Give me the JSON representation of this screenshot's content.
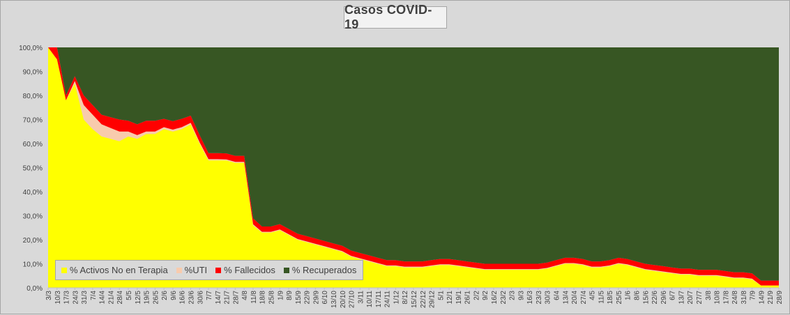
{
  "chart_data": {
    "type": "area",
    "title": "Casos  COVID-19",
    "stacked": true,
    "percent": true,
    "ylim": [
      0,
      100
    ],
    "y_ticks": [
      "0,0%",
      "10,0%",
      "20,0%",
      "30,0%",
      "40,0%",
      "50,0%",
      "60,0%",
      "70,0%",
      "80,0%",
      "90,0%",
      "100,0%"
    ],
    "x_ticks": [
      "3/3",
      "10/3",
      "17/3",
      "24/3",
      "31/3",
      "7/4",
      "14/4",
      "21/4",
      "28/4",
      "5/5",
      "12/5",
      "19/5",
      "26/5",
      "2/6",
      "9/6",
      "16/6",
      "23/6",
      "30/6",
      "7/7",
      "14/7",
      "21/7",
      "28/7",
      "4/8",
      "11/8",
      "18/8",
      "25/8",
      "1/9",
      "8/9",
      "15/9",
      "22/9",
      "29/9",
      "6/10",
      "13/10",
      "20/10",
      "27/10",
      "3/11",
      "10/11",
      "17/11",
      "24/11",
      "1/12",
      "8/12",
      "15/12",
      "22/12",
      "29/12",
      "5/1",
      "12/1",
      "19/1",
      "26/1",
      "2/2",
      "9/2",
      "16/2",
      "23/2",
      "2/3",
      "9/3",
      "16/3",
      "23/3",
      "30/3",
      "6/4",
      "13/4",
      "20/4",
      "27/4",
      "4/5",
      "11/5",
      "18/5",
      "25/5",
      "1/6",
      "8/6",
      "15/6",
      "22/6",
      "29/6",
      "6/7",
      "13/7",
      "20/7",
      "27/7",
      "3/8",
      "10/8",
      "17/8",
      "24/8",
      "31/8",
      "7/9",
      "14/9",
      "21/9",
      "28/9"
    ],
    "legend_position": "bottom-left",
    "series": [
      {
        "name": "% Activos No en Terapia",
        "color": "#ffff00",
        "values": [
          100,
          95,
          78,
          85,
          70,
          66,
          63,
          62,
          61,
          63,
          62,
          64,
          64,
          66,
          65,
          66,
          68,
          60,
          53,
          53,
          53,
          52,
          52,
          26,
          23,
          23,
          24,
          22,
          20,
          19,
          18,
          17,
          16,
          15,
          13,
          12,
          11,
          10,
          9,
          9,
          8.5,
          8.5,
          8.5,
          9,
          9.5,
          9.5,
          9,
          8.5,
          8,
          7.5,
          7.5,
          7.5,
          7.5,
          7.5,
          7.5,
          7.5,
          8,
          9,
          10,
          10,
          9.5,
          8.5,
          8.5,
          9,
          10,
          9.5,
          8.5,
          7.5,
          7,
          6.5,
          6,
          5.5,
          5.5,
          5,
          5,
          5,
          4.5,
          4,
          4,
          3.5,
          1,
          1,
          1
        ]
      },
      {
        "name": "%UTI",
        "color": "#f8cbad",
        "values": [
          0,
          0,
          0,
          1,
          6,
          6,
          5,
          4.5,
          4,
          2,
          1.5,
          1,
          1,
          0.8,
          0.8,
          0.8,
          0.6,
          0.5,
          0.5,
          0.5,
          0.4,
          0.4,
          0.4,
          0.4,
          0.3,
          0.3,
          0.3,
          0.3,
          0.3,
          0.3,
          0.3,
          0.3,
          0.3,
          0.3,
          0.3,
          0.3,
          0.3,
          0.3,
          0.3,
          0.3,
          0.3,
          0.3,
          0.3,
          0.3,
          0.3,
          0.3,
          0.3,
          0.3,
          0.3,
          0.3,
          0.3,
          0.3,
          0.3,
          0.3,
          0.3,
          0.3,
          0.3,
          0.3,
          0.3,
          0.3,
          0.3,
          0.3,
          0.3,
          0.3,
          0.3,
          0.3,
          0.3,
          0.3,
          0.3,
          0.3,
          0.3,
          0.3,
          0.3,
          0.3,
          0.3,
          0.3,
          0.3,
          0.3,
          0.3,
          0.3,
          0,
          0,
          0
        ]
      },
      {
        "name": "% Fallecidos",
        "color": "#ff0000",
        "values": [
          0,
          5,
          2,
          2,
          4,
          4,
          4,
          4.5,
          5,
          4.5,
          4.5,
          4.5,
          4.5,
          3.5,
          3.5,
          3.5,
          3,
          3,
          2.5,
          2.5,
          2.5,
          2.5,
          2.5,
          2.5,
          2.2,
          2.2,
          2.2,
          2.2,
          2.2,
          2.2,
          2.2,
          2.2,
          2.2,
          2.2,
          2.2,
          2.2,
          2.2,
          2.2,
          2.2,
          2.2,
          2.2,
          2.2,
          2.2,
          2.2,
          2.2,
          2.2,
          2.2,
          2.2,
          2.2,
          2.2,
          2.2,
          2.2,
          2.2,
          2.2,
          2.2,
          2.2,
          2.2,
          2.2,
          2.2,
          2.2,
          2.2,
          2.2,
          2.2,
          2.2,
          2.2,
          2.2,
          2.2,
          2.2,
          2.2,
          2.2,
          2.2,
          2.2,
          2.2,
          2.2,
          2.2,
          2.2,
          2.2,
          2.2,
          2.2,
          2.2,
          2,
          2,
          2
        ]
      },
      {
        "name": "% Recuperados",
        "color": "#375623",
        "values": [
          0,
          0,
          20,
          12,
          20,
          24,
          28,
          29,
          30,
          30.5,
          32,
          30.5,
          30.5,
          29.7,
          30.7,
          29.7,
          28.4,
          36.5,
          44,
          44,
          44.1,
          45.1,
          45.1,
          71.1,
          74.5,
          74.5,
          73.5,
          75.5,
          77.5,
          78.5,
          79.5,
          80.5,
          81.5,
          82.5,
          84.5,
          85.5,
          86.5,
          87.5,
          88.5,
          88.5,
          89,
          89,
          89,
          88.5,
          88,
          88,
          88.5,
          89,
          89.5,
          90,
          90,
          90,
          90,
          90,
          90,
          90,
          89.5,
          88.5,
          87.5,
          87.5,
          88,
          89,
          89,
          88.5,
          87.5,
          88,
          89,
          90,
          90.5,
          91,
          91.5,
          92,
          92,
          92.5,
          92.5,
          92.5,
          93,
          93.5,
          93.5,
          94,
          97,
          97,
          97
        ]
      }
    ]
  }
}
